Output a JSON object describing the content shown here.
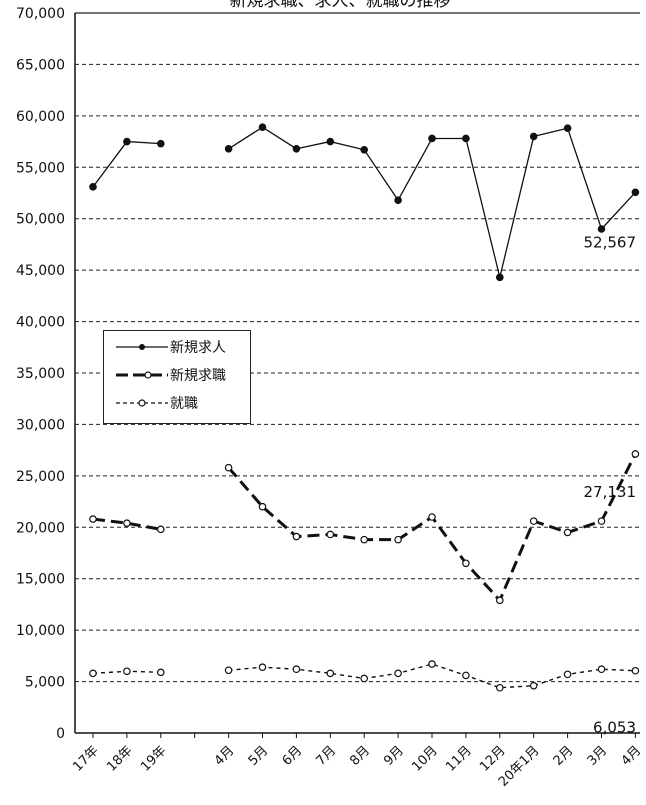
{
  "chart_data": {
    "type": "line",
    "title": "新規求職、求人、就職の推移",
    "categories": [
      "17年",
      "18年",
      "19年",
      "",
      "4月",
      "5月",
      "6月",
      "7月",
      "8月",
      "9月",
      "10月",
      "11月",
      "12月",
      "20年1月",
      "2月",
      "3月",
      "4月"
    ],
    "ylim": [
      0,
      70000
    ],
    "yticks": [
      0,
      5000,
      10000,
      15000,
      20000,
      25000,
      30000,
      35000,
      40000,
      45000,
      50000,
      55000,
      60000,
      65000,
      70000
    ],
    "ytick_labels": [
      "0",
      "5,000",
      "10,000",
      "15,000",
      "20,000",
      "25,000",
      "30,000",
      "35,000",
      "40,000",
      "45,000",
      "50,000",
      "55,000",
      "60,000",
      "65,000",
      "70,000"
    ],
    "grid": true,
    "legend_position": "middle-left",
    "series": [
      {
        "name": "新規求人",
        "style": "solid",
        "marker": "filled",
        "values": [
          53100,
          57500,
          57300,
          null,
          56800,
          58900,
          56800,
          57500,
          56700,
          51800,
          57800,
          57800,
          44300,
          58000,
          58800,
          49000,
          52567
        ],
        "end_label": "52,567"
      },
      {
        "name": "新規求職",
        "style": "dash-thick",
        "marker": "open",
        "values": [
          20800,
          20400,
          19800,
          null,
          25800,
          22000,
          19100,
          19300,
          18800,
          18800,
          21000,
          16500,
          12900,
          20600,
          19500,
          20600,
          27131
        ],
        "end_label": "27,131"
      },
      {
        "name": "就職",
        "style": "dash-thin",
        "marker": "open",
        "values": [
          5800,
          6000,
          5900,
          null,
          6100,
          6400,
          6200,
          5800,
          5300,
          5800,
          6700,
          5600,
          4400,
          4600,
          5700,
          6200,
          6053
        ],
        "end_label": "6,053"
      }
    ]
  }
}
